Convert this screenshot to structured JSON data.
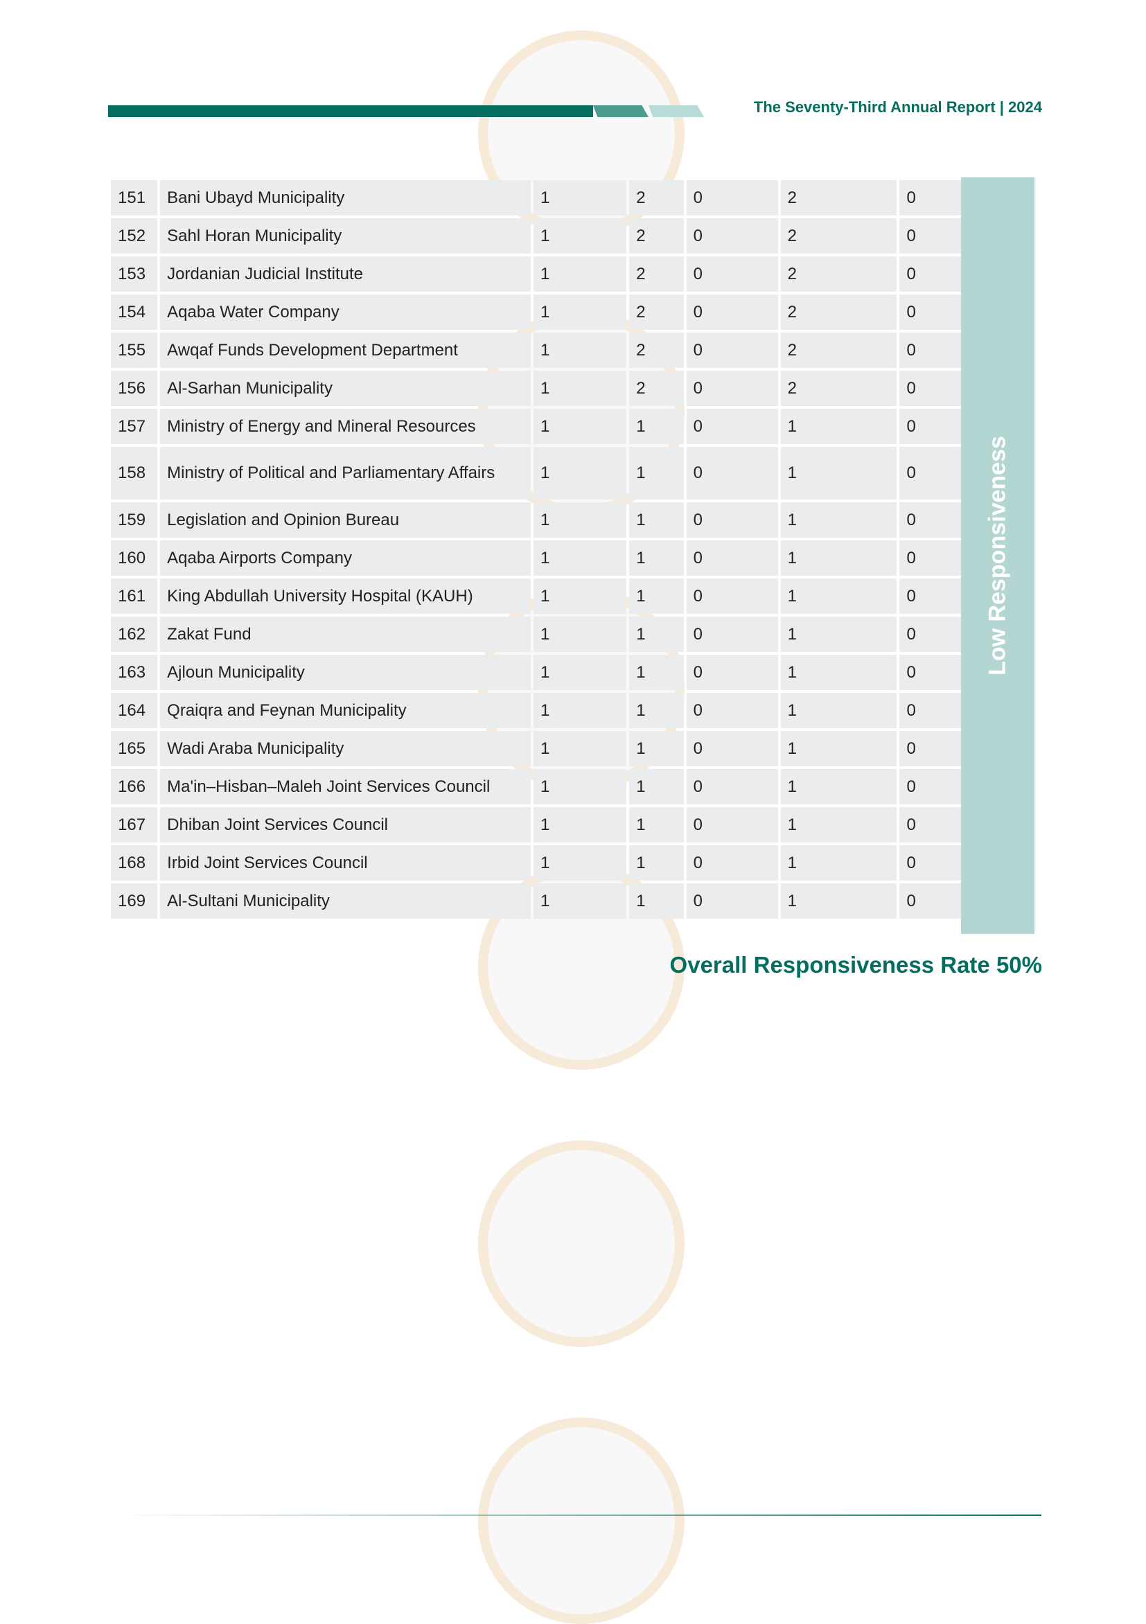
{
  "header": {
    "title": "The Seventy-Third Annual Report | 2024"
  },
  "table": {
    "category": "Low Responsiveness",
    "rows": [
      {
        "n": "151",
        "name": "Bani Ubayd Municipality",
        "v": [
          "1",
          "2",
          "0",
          "2",
          "0"
        ]
      },
      {
        "n": "152",
        "name": "Sahl Horan Municipality",
        "v": [
          "1",
          "2",
          "0",
          "2",
          "0"
        ]
      },
      {
        "n": "153",
        "name": "Jordanian Judicial Institute",
        "v": [
          "1",
          "2",
          "0",
          "2",
          "0"
        ]
      },
      {
        "n": "154",
        "name": "Aqaba Water Company",
        "v": [
          "1",
          "2",
          "0",
          "2",
          "0"
        ]
      },
      {
        "n": "155",
        "name": "Awqaf Funds Development Department",
        "v": [
          "1",
          "2",
          "0",
          "2",
          "0"
        ]
      },
      {
        "n": "156",
        "name": "Al-Sarhan Municipality",
        "v": [
          "1",
          "2",
          "0",
          "2",
          "0"
        ]
      },
      {
        "n": "157",
        "name": "Ministry of Energy and Mineral Resources",
        "v": [
          "1",
          "1",
          "0",
          "1",
          "0"
        ]
      },
      {
        "n": "158",
        "name": "Ministry of Political and Parliamentary Affairs",
        "v": [
          "1",
          "1",
          "0",
          "1",
          "0"
        ]
      },
      {
        "n": "159",
        "name": "Legislation and Opinion Bureau",
        "v": [
          "1",
          "1",
          "0",
          "1",
          "0"
        ]
      },
      {
        "n": "160",
        "name": "Aqaba Airports Company",
        "v": [
          "1",
          "1",
          "0",
          "1",
          "0"
        ]
      },
      {
        "n": "161",
        "name": "King Abdullah University Hospital (KAUH)",
        "v": [
          "1",
          "1",
          "0",
          "1",
          "0"
        ]
      },
      {
        "n": "162",
        "name": "Zakat Fund",
        "v": [
          "1",
          "1",
          "0",
          "1",
          "0"
        ]
      },
      {
        "n": "163",
        "name": "Ajloun Municipality",
        "v": [
          "1",
          "1",
          "0",
          "1",
          "0"
        ]
      },
      {
        "n": "164",
        "name": "Qraiqra and Feynan Municipality",
        "v": [
          "1",
          "1",
          "0",
          "1",
          "0"
        ]
      },
      {
        "n": "165",
        "name": "Wadi Araba Municipality",
        "v": [
          "1",
          "1",
          "0",
          "1",
          "0"
        ]
      },
      {
        "n": "166",
        "name": "Ma'in–Hisban–Maleh Joint Services Council",
        "v": [
          "1",
          "1",
          "0",
          "1",
          "0"
        ]
      },
      {
        "n": "167",
        "name": "Dhiban Joint Services Council",
        "v": [
          "1",
          "1",
          "0",
          "1",
          "0"
        ]
      },
      {
        "n": "168",
        "name": "Irbid Joint Services Council",
        "v": [
          "1",
          "1",
          "0",
          "1",
          "0"
        ]
      },
      {
        "n": "169",
        "name": "Al-Sultani Municipality",
        "v": [
          "1",
          "1",
          "0",
          "1",
          "0"
        ]
      }
    ]
  },
  "summary": {
    "rate": "Overall Responsiveness Rate 50%"
  },
  "colors": {
    "brand": "#036e5f",
    "band": "#b3d6d2",
    "cell": "#ebeced"
  }
}
